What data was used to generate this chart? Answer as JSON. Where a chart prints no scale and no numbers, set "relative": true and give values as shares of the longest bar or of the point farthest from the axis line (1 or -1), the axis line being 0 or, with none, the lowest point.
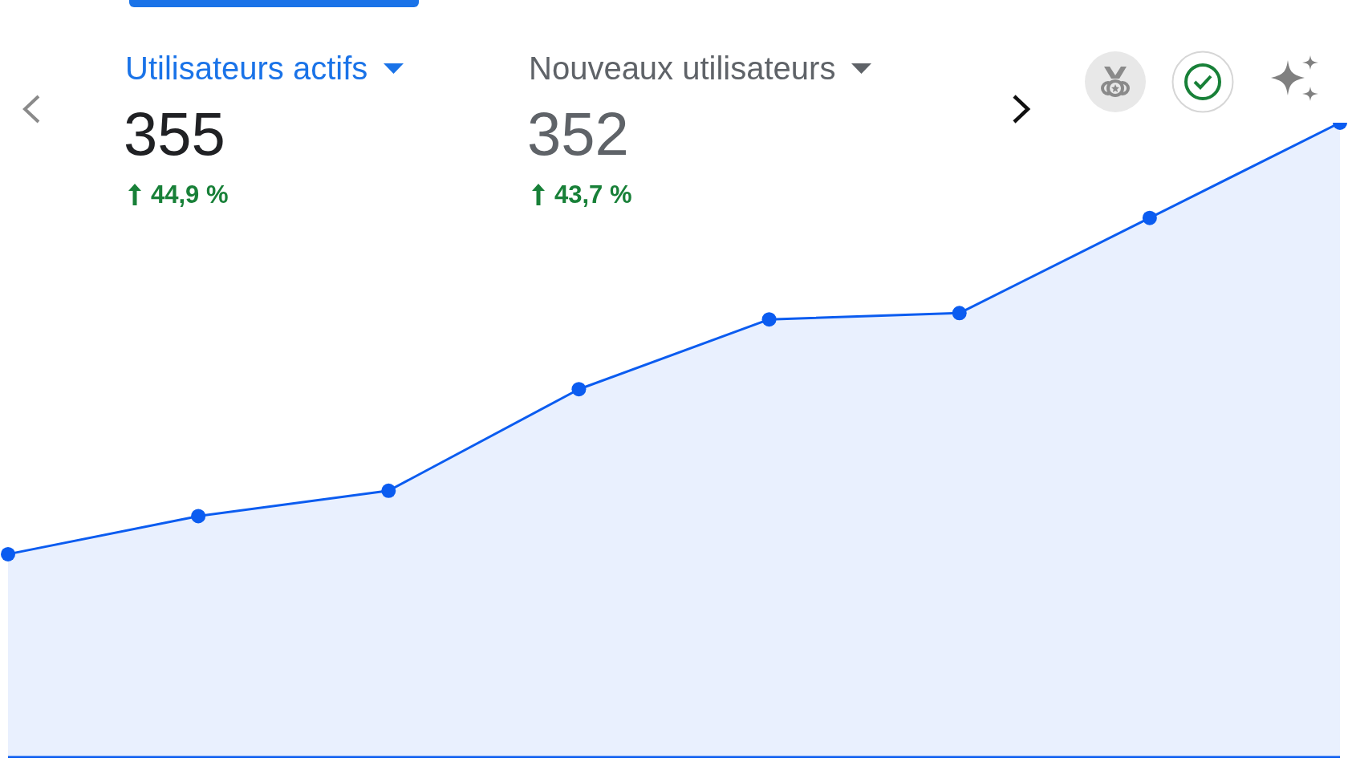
{
  "chart_data": {
    "type": "area",
    "categories": [
      null,
      null,
      null,
      null,
      null,
      null,
      null,
      null
    ],
    "values": [
      0.32,
      0.38,
      0.42,
      0.58,
      0.69,
      0.7,
      0.85,
      1
    ],
    "color": "#0b5cf0",
    "relative": true,
    "marker": "circle",
    "annotations": [
      "Utilisateurs actifs",
      "355",
      "44,9 %",
      "Nouveaux utilisateurs",
      "352",
      "43,7 %"
    ]
  }
}
